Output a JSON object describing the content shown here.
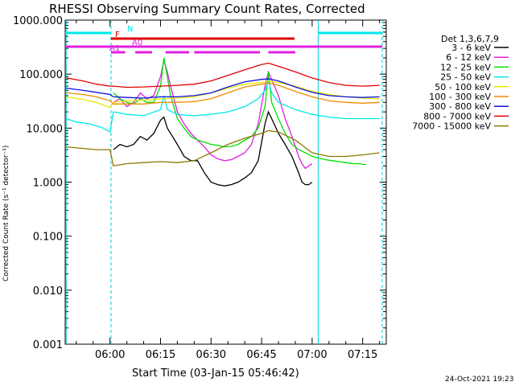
{
  "chart_data": {
    "type": "line",
    "title": "RHESSI Observing Summary Count Rates, Corrected",
    "xlabel": "Start Time (03-Jan-15 05:46:42)",
    "ylabel": "Corrected Count Rate (s⁻¹ detector⁻¹)",
    "yscale": "log",
    "ylim": [
      0.001,
      1000
    ],
    "xlim_minutes": [
      -13.3,
      82.0
    ],
    "x_tick_labels": [
      "06:00",
      "06:15",
      "06:30",
      "06:45",
      "07:00",
      "07:15"
    ],
    "x_tick_minutes": [
      0,
      15,
      30,
      45,
      60,
      75
    ],
    "y_tick_labels": [
      "0.001",
      "0.010",
      "0.100",
      "1.000",
      "10.000",
      "100.000",
      "1000.000"
    ],
    "legend_title": "Det 1,3,6,7,9",
    "legend_position": "right",
    "timestamp": "24-Oct-2021 19:23",
    "series": [
      {
        "name": "3 - 6 keV",
        "color": "#000000",
        "x": [
          -10,
          0,
          1,
          3,
          5,
          7,
          9,
          11,
          13,
          15,
          16,
          17,
          18,
          20,
          22,
          24,
          26,
          28,
          30,
          32,
          34,
          36,
          38,
          40,
          42,
          44,
          46,
          47,
          48,
          50,
          52,
          54,
          56,
          57,
          58,
          59,
          60
        ],
        "y": [
          null,
          null,
          4,
          5,
          4.5,
          5,
          7,
          6,
          8,
          14,
          16,
          10,
          8,
          5,
          3,
          2.5,
          2.5,
          1.5,
          1.0,
          0.9,
          0.85,
          0.9,
          1.0,
          1.2,
          1.5,
          2.5,
          12,
          20,
          15,
          8,
          5,
          3,
          1.5,
          1.0,
          0.9,
          0.9,
          1.0
        ]
      },
      {
        "name": "6 - 12 keV",
        "color": "#e020e0",
        "x": [
          -10,
          0,
          1,
          3,
          5,
          7,
          9,
          11,
          13,
          15,
          16,
          17,
          18,
          20,
          22,
          24,
          26,
          28,
          30,
          32,
          34,
          36,
          38,
          40,
          42,
          44,
          46,
          47,
          48,
          50,
          52,
          54,
          56,
          57,
          58,
          59,
          60
        ],
        "y": [
          null,
          null,
          30,
          35,
          25,
          30,
          45,
          35,
          40,
          90,
          180,
          110,
          60,
          20,
          12,
          8,
          6,
          4.5,
          3.2,
          2.7,
          2.5,
          2.6,
          3.0,
          3.5,
          5,
          12,
          60,
          110,
          80,
          40,
          15,
          7,
          3,
          2.2,
          1.8,
          2.0,
          2.2
        ]
      },
      {
        "name": "12 - 25 keV",
        "color": "#00e000",
        "x": [
          -10,
          0,
          1,
          3,
          5,
          7,
          9,
          11,
          13,
          15,
          16,
          17,
          18,
          20,
          22,
          24,
          26,
          28,
          30,
          32,
          34,
          36,
          38,
          40,
          42,
          44,
          46,
          47,
          48,
          50,
          52,
          54,
          56,
          58,
          60,
          62,
          64,
          66,
          68,
          70,
          72,
          74,
          76
        ],
        "y": [
          null,
          null,
          45,
          35,
          30,
          28,
          35,
          30,
          30,
          60,
          200,
          90,
          40,
          15,
          10,
          7,
          6,
          5.5,
          5,
          4.8,
          4.5,
          4.6,
          5,
          6,
          7,
          10,
          25,
          110,
          30,
          15,
          8,
          5,
          4,
          3.5,
          3.0,
          2.8,
          2.6,
          2.5,
          2.4,
          2.3,
          2.2,
          2.2,
          2.1
        ]
      },
      {
        "name": "25 - 50 keV",
        "color": "#00e8e8",
        "x": [
          -13,
          -10,
          -6,
          -2,
          0,
          1,
          5,
          10,
          15,
          16,
          17,
          20,
          25,
          30,
          35,
          40,
          44,
          46,
          47,
          48,
          50,
          55,
          60,
          65,
          70,
          75,
          80
        ],
        "y": [
          15,
          13,
          12,
          10,
          8.5,
          20,
          18,
          17,
          22,
          40,
          22,
          18,
          17,
          18,
          20,
          25,
          35,
          50,
          75,
          45,
          30,
          22,
          18,
          16,
          15,
          15,
          15
        ]
      },
      {
        "name": "50 - 100 keV",
        "color": "#e8e800",
        "x": [
          -13,
          -8,
          -4,
          0,
          1,
          5,
          10,
          15,
          20,
          25,
          30,
          35,
          40,
          45,
          47,
          50,
          55,
          60,
          65,
          70,
          75,
          80
        ],
        "y": [
          38,
          34,
          30,
          24,
          30,
          32,
          33,
          35,
          36,
          38,
          45,
          55,
          65,
          70,
          75,
          70,
          60,
          48,
          42,
          38,
          36,
          35
        ]
      },
      {
        "name": "100 - 300 keV",
        "color": "#f08c00",
        "x": [
          -13,
          -8,
          -4,
          0,
          1,
          5,
          10,
          15,
          20,
          25,
          30,
          35,
          40,
          45,
          47,
          50,
          55,
          60,
          65,
          70,
          75,
          80
        ],
        "y": [
          45,
          42,
          38,
          32,
          28,
          28,
          28,
          30,
          30,
          31,
          35,
          45,
          58,
          65,
          68,
          62,
          48,
          38,
          32,
          30,
          29,
          30
        ]
      },
      {
        "name": "300 - 800 keV",
        "color": "#1010e0",
        "x": [
          -13,
          -8,
          -4,
          0,
          1,
          5,
          10,
          15,
          20,
          25,
          30,
          35,
          40,
          45,
          47,
          50,
          55,
          60,
          65,
          70,
          75,
          80
        ],
        "y": [
          55,
          50,
          46,
          42,
          38,
          37,
          36,
          38,
          38,
          40,
          45,
          58,
          72,
          80,
          82,
          75,
          58,
          46,
          40,
          38,
          37,
          38
        ]
      },
      {
        "name": "800 - 7000 keV",
        "color": "#e00000",
        "x": [
          -13,
          -8,
          -4,
          0,
          1,
          5,
          10,
          15,
          20,
          25,
          30,
          35,
          40,
          45,
          47,
          50,
          55,
          60,
          65,
          70,
          75,
          80
        ],
        "y": [
          85,
          75,
          65,
          60,
          60,
          57,
          58,
          60,
          62,
          65,
          75,
          95,
          120,
          150,
          160,
          140,
          110,
          85,
          70,
          62,
          60,
          62
        ]
      },
      {
        "name": "7000 - 15000 keV",
        "color": "#8c7800",
        "x": [
          -13,
          -8,
          -4,
          0,
          1,
          5,
          10,
          15,
          20,
          25,
          30,
          35,
          40,
          45,
          47,
          50,
          55,
          60,
          65,
          70,
          75,
          80
        ],
        "y": [
          4.5,
          4.2,
          4.0,
          4.0,
          2.0,
          2.2,
          2.3,
          2.4,
          2.3,
          2.5,
          3.5,
          5,
          6.5,
          8,
          9,
          8.5,
          6,
          3.5,
          3,
          3,
          3.2,
          3.5
        ]
      }
    ],
    "flags": [
      {
        "label": "N",
        "color": "#00e8e8",
        "segments": [
          [
            -13.3,
            0.3
          ],
          [
            61.8,
            80.8
          ]
        ]
      },
      {
        "label": "F",
        "color": "#e00000",
        "segments": [
          [
            0.3,
            54.8
          ]
        ]
      },
      {
        "label": "A0",
        "color": "#e020e0",
        "segments": [
          [
            -13.3,
            80.8
          ]
        ]
      },
      {
        "label": "A1",
        "color": "#e020e0",
        "segments": [
          [
            0.3,
            4.5
          ],
          [
            7.5,
            12.5
          ],
          [
            16.5,
            23.5
          ],
          [
            25.0,
            44.5
          ],
          [
            47.0,
            55.0
          ]
        ]
      }
    ]
  }
}
